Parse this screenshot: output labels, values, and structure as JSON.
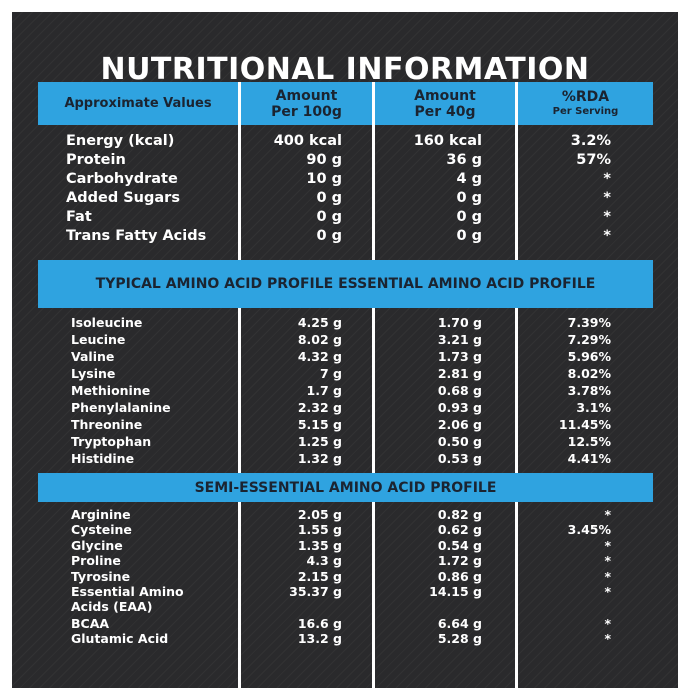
{
  "title": "NUTRITIONAL INFORMATION",
  "headers": {
    "approx": "Approximate Values",
    "per100_line1": "Amount",
    "per100_line2": "Per 100g",
    "per40_line1": "Amount",
    "per40_line2": "Per 40g",
    "rda_line1": "%RDA",
    "rda_line2": "Per Serving"
  },
  "nutrition": [
    {
      "name": "Energy (kcal)",
      "per100": "400 kcal",
      "per40": "160 kcal",
      "rda": "3.2%"
    },
    {
      "name": "Protein",
      "per100": "90 g",
      "per40": "36 g",
      "rda": "57%"
    },
    {
      "name": "Carbohydrate",
      "per100": "10 g",
      "per40": "4 g",
      "rda": "*"
    },
    {
      "name": "Added Sugars",
      "per100": "0 g",
      "per40": "0 g",
      "rda": "*"
    },
    {
      "name": "Fat",
      "per100": "0 g",
      "per40": "0 g",
      "rda": "*"
    },
    {
      "name": "Trans Fatty Acids",
      "per100": "0 g",
      "per40": "0 g",
      "rda": "*"
    }
  ],
  "essential_heading": "TYPICAL AMINO ACID PROFILE ESSENTIAL AMINO ACID PROFILE",
  "essential": [
    {
      "name": "Isoleucine",
      "per100": "4.25 g",
      "per40": "1.70 g",
      "rda": "7.39%"
    },
    {
      "name": "Leucine",
      "per100": "8.02 g",
      "per40": "3.21 g",
      "rda": "7.29%"
    },
    {
      "name": "Valine",
      "per100": "4.32 g",
      "per40": "1.73 g",
      "rda": "5.96%"
    },
    {
      "name": "Lysine",
      "per100": "7 g",
      "per40": "2.81 g",
      "rda": "8.02%"
    },
    {
      "name": "Methionine",
      "per100": "1.7 g",
      "per40": "0.68 g",
      "rda": "3.78%"
    },
    {
      "name": "Phenylalanine",
      "per100": "2.32 g",
      "per40": "0.93 g",
      "rda": "3.1%"
    },
    {
      "name": "Threonine",
      "per100": "5.15 g",
      "per40": "2.06 g",
      "rda": "11.45%"
    },
    {
      "name": "Tryptophan",
      "per100": "1.25 g",
      "per40": "0.50 g",
      "rda": "12.5%"
    },
    {
      "name": "Histidine",
      "per100": "1.32 g",
      "per40": "0.53 g",
      "rda": "4.41%"
    }
  ],
  "semi_heading": "SEMI-ESSENTIAL AMINO ACID PROFILE",
  "semi": [
    {
      "name": "Arginine",
      "per100": "2.05 g",
      "per40": "0.82 g",
      "rda": "*"
    },
    {
      "name": "Cysteine",
      "per100": "1.55 g",
      "per40": "0.62 g",
      "rda": "3.45%"
    },
    {
      "name": "Glycine",
      "per100": "1.35 g",
      "per40": "0.54 g",
      "rda": "*"
    },
    {
      "name": "Proline",
      "per100": "4.3 g",
      "per40": "1.72 g",
      "rda": "*"
    },
    {
      "name": "Tyrosine",
      "per100": "2.15 g",
      "per40": "0.86 g",
      "rda": "*"
    },
    {
      "name": "Essential Amino",
      "per100": "35.37 g",
      "per40": "14.15 g",
      "rda": "*"
    },
    {
      "name": "Acids (EAA)",
      "per100": "",
      "per40": "",
      "rda": ""
    },
    {
      "name": "BCAA",
      "per100": "16.6 g",
      "per40": "6.64 g",
      "rda": "*"
    },
    {
      "name": "Glutamic Acid",
      "per100": "13.2 g",
      "per40": "5.28 g",
      "rda": "*"
    }
  ],
  "colors": {
    "panel": "#2a2a2c",
    "accent": "#2fa3e0",
    "header_text": "#1b2431",
    "text": "#ffffff"
  }
}
